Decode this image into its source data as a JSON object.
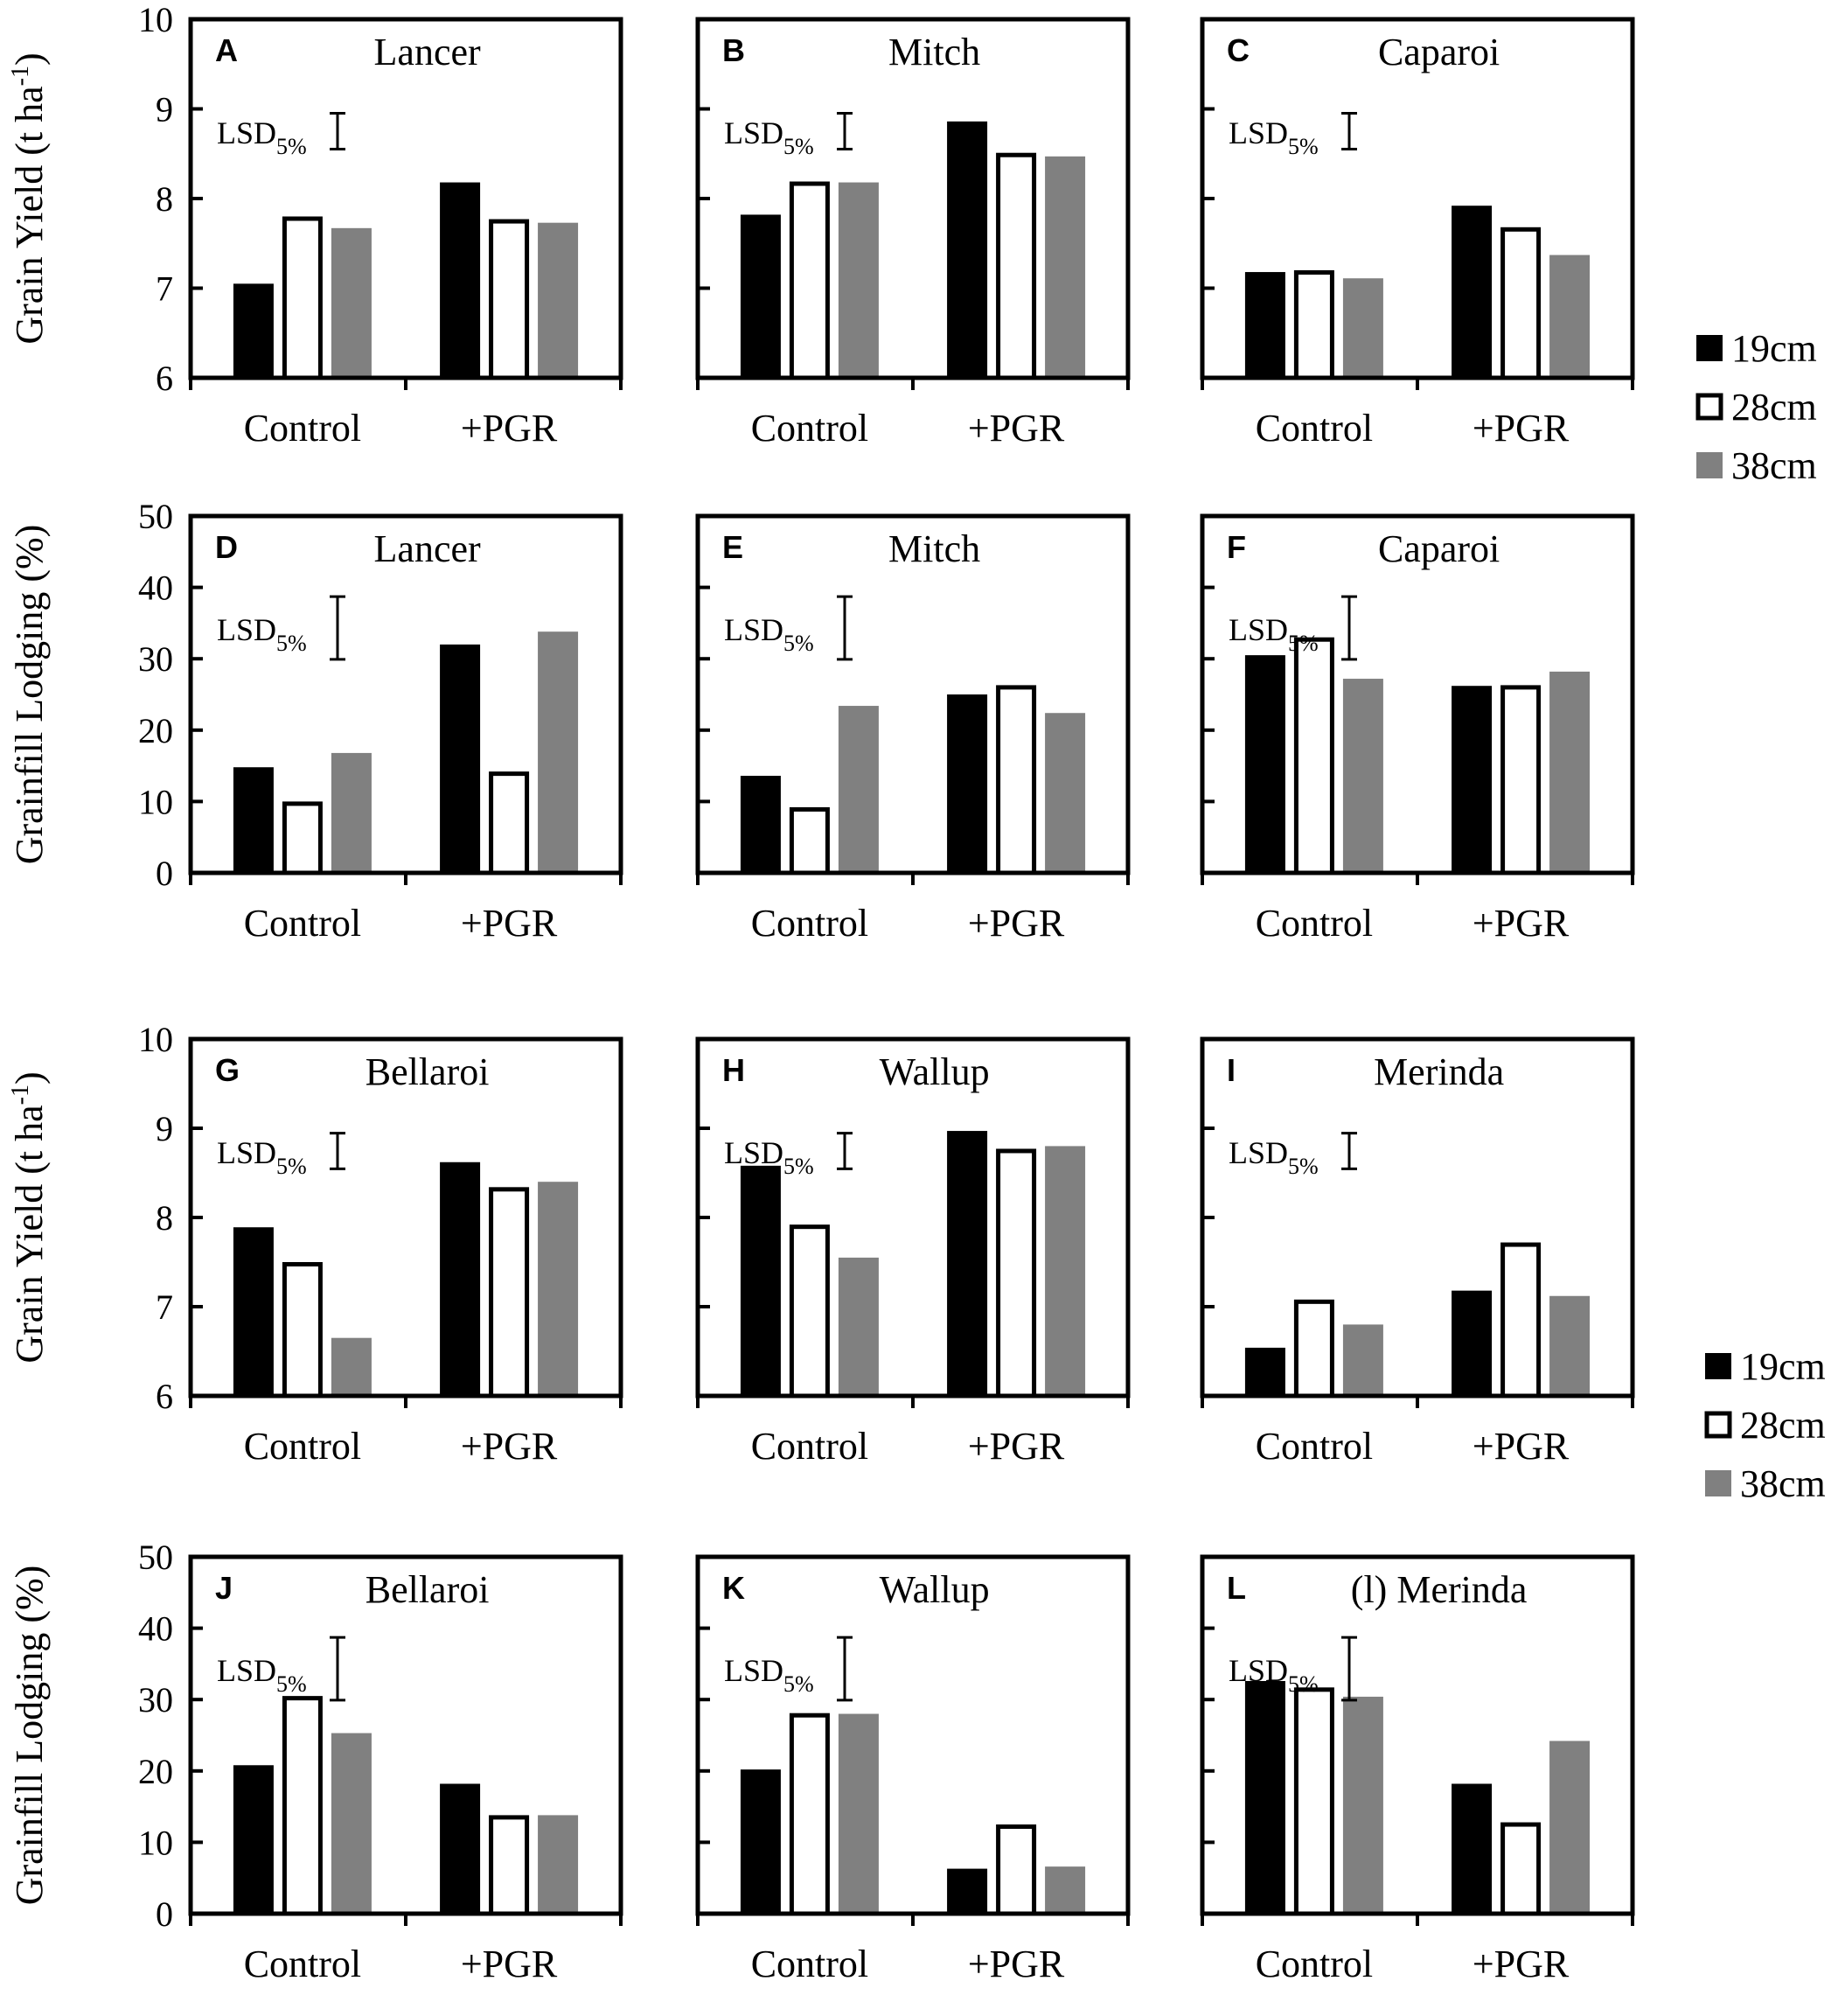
{
  "chart_data": [
    {
      "type": "bar",
      "panel_letter": "A",
      "title": "Lancer",
      "ylabel": "Grain Yield (t ha",
      "ylabel_sup": "-1",
      "ylabel_close": ")",
      "ylim": [
        6,
        10
      ],
      "yticks": [
        6,
        7,
        8,
        9,
        10
      ],
      "categories": [
        "Control",
        "+PGR"
      ],
      "series": [
        {
          "name": "19cm",
          "values": [
            7.05,
            8.18
          ]
        },
        {
          "name": "28cm",
          "values": [
            7.8,
            7.77
          ]
        },
        {
          "name": "38cm",
          "values": [
            7.67,
            7.73
          ]
        }
      ],
      "lsd": {
        "label": "LSD",
        "sub": "5%",
        "value": 0.4
      }
    },
    {
      "type": "bar",
      "panel_letter": "B",
      "title": "Mitch",
      "ylim": [
        6,
        10
      ],
      "categories": [
        "Control",
        "+PGR"
      ],
      "series": [
        {
          "name": "19cm",
          "values": [
            7.82,
            8.86
          ]
        },
        {
          "name": "28cm",
          "values": [
            8.19,
            8.51
          ]
        },
        {
          "name": "38cm",
          "values": [
            8.18,
            8.47
          ]
        }
      ],
      "lsd": {
        "label": "LSD",
        "sub": "5%",
        "value": 0.4
      }
    },
    {
      "type": "bar",
      "panel_letter": "C",
      "title": "Caparoi",
      "ylim": [
        6,
        10
      ],
      "categories": [
        "Control",
        "+PGR"
      ],
      "series": [
        {
          "name": "19cm",
          "values": [
            7.18,
            7.92
          ]
        },
        {
          "name": "28cm",
          "values": [
            7.2,
            7.68
          ]
        },
        {
          "name": "38cm",
          "values": [
            7.11,
            7.37
          ]
        }
      ],
      "lsd": {
        "label": "LSD",
        "sub": "5%",
        "value": 0.4
      }
    },
    {
      "type": "bar",
      "panel_letter": "D",
      "title": "Lancer",
      "ylabel": "Grainfill Lodging (%)",
      "ylim": [
        0,
        50
      ],
      "yticks": [
        0,
        10,
        20,
        30,
        40,
        50
      ],
      "categories": [
        "Control",
        "+PGR"
      ],
      "series": [
        {
          "name": "19cm",
          "values": [
            14.8,
            32
          ]
        },
        {
          "name": "28cm",
          "values": [
            10,
            14.2
          ]
        },
        {
          "name": "38cm",
          "values": [
            16.8,
            33.8
          ]
        }
      ],
      "lsd": {
        "label": "LSD",
        "sub": "5%",
        "value": 8.8
      }
    },
    {
      "type": "bar",
      "panel_letter": "E",
      "title": "Mitch",
      "ylim": [
        0,
        50
      ],
      "categories": [
        "Control",
        "+PGR"
      ],
      "series": [
        {
          "name": "19cm",
          "values": [
            13.6,
            25
          ]
        },
        {
          "name": "28cm",
          "values": [
            9.2,
            26.3
          ]
        },
        {
          "name": "38cm",
          "values": [
            23.4,
            22.4
          ]
        }
      ],
      "lsd": {
        "label": "LSD",
        "sub": "5%",
        "value": 8.8
      }
    },
    {
      "type": "bar",
      "panel_letter": "F",
      "title": "Caparoi",
      "ylim": [
        0,
        50
      ],
      "categories": [
        "Control",
        "+PGR"
      ],
      "series": [
        {
          "name": "19cm",
          "values": [
            30.5,
            26.2
          ]
        },
        {
          "name": "28cm",
          "values": [
            33,
            26.3
          ]
        },
        {
          "name": "38cm",
          "values": [
            27.2,
            28.2
          ]
        }
      ],
      "lsd": {
        "label": "LSD",
        "sub": "5%",
        "value": 8.8
      }
    },
    {
      "type": "bar",
      "panel_letter": "G",
      "title": "Bellaroi",
      "ylabel": "Grain Yield (t ha",
      "ylabel_sup": "-1",
      "ylabel_close": ")",
      "ylim": [
        6,
        10
      ],
      "yticks": [
        6,
        7,
        8,
        9,
        10
      ],
      "categories": [
        "Control",
        "+PGR"
      ],
      "series": [
        {
          "name": "19cm",
          "values": [
            7.89,
            8.62
          ]
        },
        {
          "name": "28cm",
          "values": [
            7.5,
            8.34
          ]
        },
        {
          "name": "38cm",
          "values": [
            6.65,
            8.4
          ]
        }
      ],
      "lsd": {
        "label": "LSD",
        "sub": "5%",
        "value": 0.4
      }
    },
    {
      "type": "bar",
      "panel_letter": "H",
      "title": "Wallup",
      "ylim": [
        6,
        10
      ],
      "categories": [
        "Control",
        "+PGR"
      ],
      "series": [
        {
          "name": "19cm",
          "values": [
            8.58,
            8.97
          ]
        },
        {
          "name": "28cm",
          "values": [
            7.92,
            8.77
          ]
        },
        {
          "name": "38cm",
          "values": [
            7.55,
            8.8
          ]
        }
      ],
      "lsd": {
        "label": "LSD",
        "sub": "5%",
        "value": 0.4
      }
    },
    {
      "type": "bar",
      "panel_letter": "I",
      "title": "Merinda",
      "ylim": [
        6,
        10
      ],
      "categories": [
        "Control",
        "+PGR"
      ],
      "series": [
        {
          "name": "19cm",
          "values": [
            6.54,
            7.18
          ]
        },
        {
          "name": "28cm",
          "values": [
            7.08,
            7.72
          ]
        },
        {
          "name": "38cm",
          "values": [
            6.8,
            7.12
          ]
        }
      ],
      "lsd": {
        "label": "LSD",
        "sub": "5%",
        "value": 0.4
      }
    },
    {
      "type": "bar",
      "panel_letter": "J",
      "title": "Bellaroi",
      "ylabel": "Grainfill Lodging (%)",
      "ylim": [
        0,
        50
      ],
      "yticks": [
        0,
        10,
        20,
        30,
        40,
        50
      ],
      "categories": [
        "Control",
        "+PGR"
      ],
      "series": [
        {
          "name": "19cm",
          "values": [
            20.8,
            18.2
          ]
        },
        {
          "name": "28cm",
          "values": [
            30.5,
            13.8
          ]
        },
        {
          "name": "38cm",
          "values": [
            25.3,
            13.8
          ]
        }
      ],
      "lsd": {
        "label": "LSD",
        "sub": "5%",
        "value": 8.8
      }
    },
    {
      "type": "bar",
      "panel_letter": "K",
      "title": "Wallup",
      "ylim": [
        0,
        50
      ],
      "categories": [
        "Control",
        "+PGR"
      ],
      "series": [
        {
          "name": "19cm",
          "values": [
            20.2,
            6.3
          ]
        },
        {
          "name": "28cm",
          "values": [
            28.1,
            12.5
          ]
        },
        {
          "name": "38cm",
          "values": [
            28,
            6.6
          ]
        }
      ],
      "lsd": {
        "label": "LSD",
        "sub": "5%",
        "value": 8.8
      }
    },
    {
      "type": "bar",
      "panel_letter": "L",
      "title": "(l) Merinda",
      "ylim": [
        0,
        50
      ],
      "categories": [
        "Control",
        "+PGR"
      ],
      "series": [
        {
          "name": "19cm",
          "values": [
            32.6,
            18.2
          ]
        },
        {
          "name": "28cm",
          "values": [
            31.7,
            12.8
          ]
        },
        {
          "name": "38cm",
          "values": [
            30.4,
            24.2
          ]
        }
      ],
      "lsd": {
        "label": "LSD",
        "sub": "5%",
        "value": 8.8
      }
    }
  ],
  "legends": [
    {
      "items": [
        {
          "label": "19cm",
          "style": "black"
        },
        {
          "label": "28cm",
          "style": "open"
        },
        {
          "label": "38cm",
          "style": "gray"
        }
      ]
    },
    {
      "items": [
        {
          "label": "19cm",
          "style": "black"
        },
        {
          "label": "28cm",
          "style": "open"
        },
        {
          "label": "38cm",
          "style": "gray"
        }
      ]
    }
  ],
  "colors": {
    "series_19cm": "#000000",
    "series_28cm": "#ffffff",
    "series_38cm": "#808080",
    "axis": "#000000"
  }
}
